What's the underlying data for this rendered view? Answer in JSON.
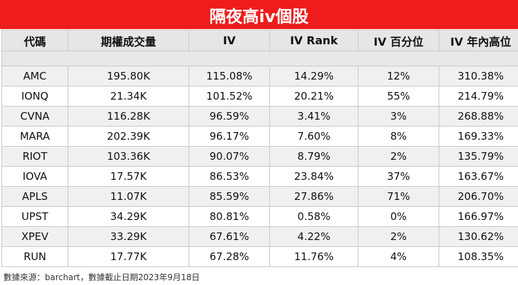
{
  "title": "隔夜高iv個股",
  "columns": [
    "代碼",
    "期權成交量",
    "IV",
    "IV Rank",
    "IV 百分位",
    "IV 年內高位"
  ],
  "rows": [
    [
      "AMC",
      "195.80K",
      "115.08%",
      "14.29%",
      "12%",
      "310.38%"
    ],
    [
      "IONQ",
      "21.34K",
      "101.52%",
      "20.21%",
      "55%",
      "214.79%"
    ],
    [
      "CVNA",
      "116.28K",
      "96.59%",
      "3.41%",
      "3%",
      "268.88%"
    ],
    [
      "MARA",
      "202.39K",
      "96.17%",
      "7.60%",
      "8%",
      "169.33%"
    ],
    [
      "RIOT",
      "103.36K",
      "90.07%",
      "8.79%",
      "2%",
      "135.79%"
    ],
    [
      "IOVA",
      "17.57K",
      "86.53%",
      "23.84%",
      "37%",
      "163.67%"
    ],
    [
      "APLS",
      "11.07K",
      "85.59%",
      "27.86%",
      "71%",
      "206.70%"
    ],
    [
      "UPST",
      "34.29K",
      "80.81%",
      "0.58%",
      "0%",
      "166.97%"
    ],
    [
      "XPEV",
      "33.29K",
      "67.61%",
      "4.22%",
      "2%",
      "130.62%"
    ],
    [
      "RUN",
      "17.77K",
      "67.28%",
      "11.76%",
      "4%",
      "108.35%"
    ]
  ],
  "footer": "數據來源：barchart，數據截止日期2023年9月18日",
  "colors": {
    "title_bg": "#ee1c1c",
    "header_bg": "#e6e6e6",
    "row_alt_bg": "#f0f0f0"
  }
}
